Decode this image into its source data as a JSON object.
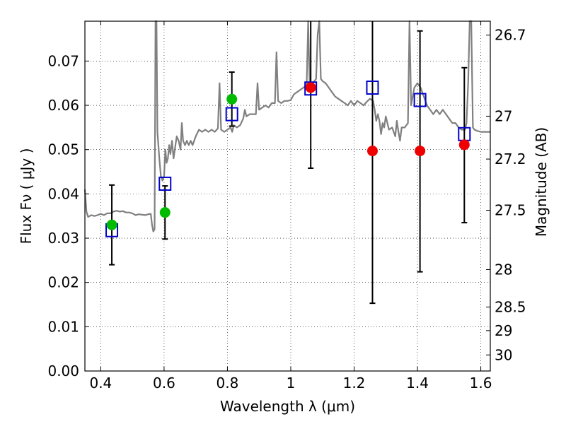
{
  "chart_data": {
    "type": "scatter",
    "xlabel": "Wavelength  λ (μm)",
    "ylabel": "Flux  Fν  ( μJy )",
    "y2label": "Magnitude (AB)",
    "xlim": [
      0.35,
      1.63
    ],
    "ylim": [
      0.0,
      0.079
    ],
    "grid": true,
    "x_ticks": [
      "0.4",
      "0.6",
      "0.8",
      "1",
      "1.2",
      "1.4",
      "1.6"
    ],
    "y_ticks": [
      "0.00",
      "0.01",
      "0.02",
      "0.03",
      "0.04",
      "0.05",
      "0.06",
      "0.07"
    ],
    "mag_ticks": [
      "26.7",
      "27",
      "27.2",
      "27.5",
      "28",
      "28.5",
      "29",
      "30"
    ],
    "colors": {
      "model": "#808080",
      "model_points": "#0000cc",
      "optical": "#00bb00",
      "infrared": "#ee0000",
      "errorbar": "#000000"
    },
    "model_points": {
      "x": [
        0.435,
        0.603,
        0.814,
        1.063,
        1.258,
        1.408,
        1.548
      ],
      "y": [
        0.0318,
        0.0423,
        0.058,
        0.0638,
        0.064,
        0.0612,
        0.0535
      ]
    },
    "optical_points": {
      "x": [
        0.435,
        0.603,
        0.814
      ],
      "y": [
        0.033,
        0.0358,
        0.0614
      ],
      "yerr_low": [
        0.024,
        0.0298,
        0.0553
      ],
      "yerr_high": [
        0.042,
        0.0418,
        0.0675
      ]
    },
    "infrared_points": {
      "x": [
        1.063,
        1.258,
        1.408,
        1.548
      ],
      "y": [
        0.064,
        0.0497,
        0.0497,
        0.0511
      ],
      "yerr_low": [
        0.0458,
        0.0153,
        0.0224,
        0.0335
      ],
      "yerr_high": [
        0.079,
        0.079,
        0.0768,
        0.0685
      ]
    },
    "model_spectrum": [
      [
        0.35,
        0.041
      ],
      [
        0.355,
        0.036
      ],
      [
        0.36,
        0.0348
      ],
      [
        0.37,
        0.0352
      ],
      [
        0.38,
        0.035
      ],
      [
        0.39,
        0.0352
      ],
      [
        0.4,
        0.0355
      ],
      [
        0.41,
        0.0352
      ],
      [
        0.42,
        0.0356
      ],
      [
        0.43,
        0.0356
      ],
      [
        0.44,
        0.036
      ],
      [
        0.45,
        0.0362
      ],
      [
        0.46,
        0.036
      ],
      [
        0.47,
        0.0361
      ],
      [
        0.48,
        0.0358
      ],
      [
        0.49,
        0.0358
      ],
      [
        0.5,
        0.0356
      ],
      [
        0.51,
        0.0352
      ],
      [
        0.52,
        0.0354
      ],
      [
        0.53,
        0.0353
      ],
      [
        0.54,
        0.0352
      ],
      [
        0.55,
        0.0354
      ],
      [
        0.558,
        0.0355
      ],
      [
        0.562,
        0.033
      ],
      [
        0.566,
        0.0315
      ],
      [
        0.57,
        0.032
      ],
      [
        0.573,
        0.079
      ],
      [
        0.576,
        0.079
      ],
      [
        0.579,
        0.054
      ],
      [
        0.585,
        0.048
      ],
      [
        0.59,
        0.044
      ],
      [
        0.595,
        0.043
      ],
      [
        0.6,
        0.044
      ],
      [
        0.604,
        0.05
      ],
      [
        0.608,
        0.047
      ],
      [
        0.612,
        0.048
      ],
      [
        0.616,
        0.051
      ],
      [
        0.62,
        0.049
      ],
      [
        0.625,
        0.052
      ],
      [
        0.63,
        0.048
      ],
      [
        0.636,
        0.051
      ],
      [
        0.64,
        0.053
      ],
      [
        0.646,
        0.052
      ],
      [
        0.652,
        0.05
      ],
      [
        0.656,
        0.056
      ],
      [
        0.66,
        0.052
      ],
      [
        0.666,
        0.051
      ],
      [
        0.672,
        0.052
      ],
      [
        0.678,
        0.051
      ],
      [
        0.684,
        0.052
      ],
      [
        0.69,
        0.051
      ],
      [
        0.7,
        0.053
      ],
      [
        0.71,
        0.0545
      ],
      [
        0.72,
        0.054
      ],
      [
        0.73,
        0.0545
      ],
      [
        0.74,
        0.054
      ],
      [
        0.75,
        0.0545
      ],
      [
        0.76,
        0.054
      ],
      [
        0.77,
        0.0548
      ],
      [
        0.775,
        0.065
      ],
      [
        0.78,
        0.0545
      ],
      [
        0.79,
        0.054
      ],
      [
        0.8,
        0.0545
      ],
      [
        0.81,
        0.055
      ],
      [
        0.815,
        0.054
      ],
      [
        0.82,
        0.0555
      ],
      [
        0.83,
        0.055
      ],
      [
        0.84,
        0.0555
      ],
      [
        0.85,
        0.057
      ],
      [
        0.855,
        0.059
      ],
      [
        0.86,
        0.0575
      ],
      [
        0.87,
        0.058
      ],
      [
        0.88,
        0.058
      ],
      [
        0.89,
        0.058
      ],
      [
        0.895,
        0.065
      ],
      [
        0.9,
        0.059
      ],
      [
        0.91,
        0.0595
      ],
      [
        0.92,
        0.06
      ],
      [
        0.93,
        0.0595
      ],
      [
        0.94,
        0.0605
      ],
      [
        0.95,
        0.0605
      ],
      [
        0.955,
        0.072
      ],
      [
        0.96,
        0.061
      ],
      [
        0.97,
        0.0605
      ],
      [
        0.98,
        0.061
      ],
      [
        0.99,
        0.061
      ],
      [
        1.0,
        0.0612
      ],
      [
        1.01,
        0.0625
      ],
      [
        1.02,
        0.063
      ],
      [
        1.03,
        0.0635
      ],
      [
        1.04,
        0.064
      ],
      [
        1.05,
        0.0645
      ],
      [
        1.055,
        0.079
      ],
      [
        1.06,
        0.064
      ],
      [
        1.07,
        0.065
      ],
      [
        1.08,
        0.066
      ],
      [
        1.085,
        0.076
      ],
      [
        1.09,
        0.079
      ],
      [
        1.095,
        0.066
      ],
      [
        1.1,
        0.0655
      ],
      [
        1.11,
        0.065
      ],
      [
        1.12,
        0.064
      ],
      [
        1.13,
        0.063
      ],
      [
        1.14,
        0.062
      ],
      [
        1.15,
        0.0615
      ],
      [
        1.16,
        0.061
      ],
      [
        1.17,
        0.0605
      ],
      [
        1.18,
        0.06
      ],
      [
        1.19,
        0.061
      ],
      [
        1.2,
        0.06
      ],
      [
        1.21,
        0.061
      ],
      [
        1.22,
        0.0605
      ],
      [
        1.23,
        0.06
      ],
      [
        1.24,
        0.0608
      ],
      [
        1.25,
        0.0615
      ],
      [
        1.26,
        0.061
      ],
      [
        1.265,
        0.059
      ],
      [
        1.27,
        0.0565
      ],
      [
        1.275,
        0.058
      ],
      [
        1.28,
        0.0565
      ],
      [
        1.285,
        0.0535
      ],
      [
        1.29,
        0.056
      ],
      [
        1.295,
        0.055
      ],
      [
        1.3,
        0.0575
      ],
      [
        1.31,
        0.0545
      ],
      [
        1.32,
        0.055
      ],
      [
        1.33,
        0.053
      ],
      [
        1.335,
        0.0565
      ],
      [
        1.34,
        0.054
      ],
      [
        1.345,
        0.052
      ],
      [
        1.35,
        0.055
      ],
      [
        1.36,
        0.055
      ],
      [
        1.37,
        0.056
      ],
      [
        1.375,
        0.079
      ],
      [
        1.38,
        0.06
      ],
      [
        1.39,
        0.064
      ],
      [
        1.4,
        0.065
      ],
      [
        1.41,
        0.064
      ],
      [
        1.42,
        0.062
      ],
      [
        1.43,
        0.06
      ],
      [
        1.44,
        0.059
      ],
      [
        1.45,
        0.058
      ],
      [
        1.46,
        0.059
      ],
      [
        1.47,
        0.058
      ],
      [
        1.48,
        0.059
      ],
      [
        1.49,
        0.058
      ],
      [
        1.5,
        0.057
      ],
      [
        1.51,
        0.056
      ],
      [
        1.52,
        0.056
      ],
      [
        1.53,
        0.055
      ],
      [
        1.54,
        0.0545
      ],
      [
        1.55,
        0.0545
      ],
      [
        1.555,
        0.056
      ],
      [
        1.56,
        0.065
      ],
      [
        1.565,
        0.079
      ],
      [
        1.57,
        0.079
      ],
      [
        1.575,
        0.055
      ],
      [
        1.58,
        0.0545
      ],
      [
        1.59,
        0.0542
      ],
      [
        1.6,
        0.054
      ],
      [
        1.61,
        0.054
      ],
      [
        1.63,
        0.054
      ]
    ]
  }
}
